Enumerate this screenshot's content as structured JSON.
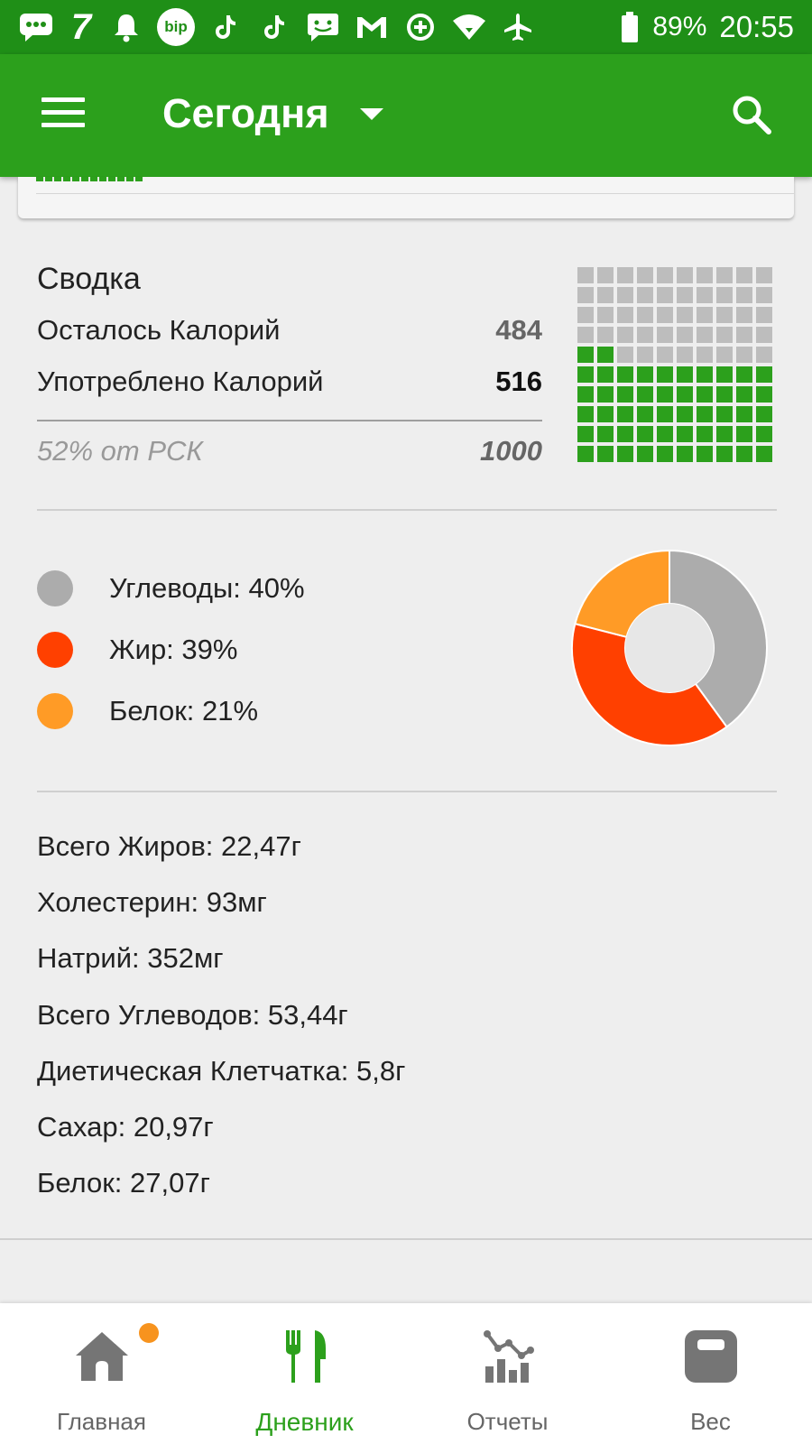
{
  "status_bar": {
    "time": "20:55",
    "battery": "89%",
    "icons": [
      "message-icon",
      "seven-icon",
      "bell-icon",
      "bip-icon",
      "tiktok-icon",
      "tiktok-icon",
      "chat-icon",
      "gmail-icon",
      "data-saver-icon",
      "wifi-icon",
      "airplane-icon",
      "battery-icon"
    ],
    "bip_label": "bip",
    "seven_label": "7"
  },
  "app_bar": {
    "title": "Сегодня",
    "menu_icon": "menu-icon",
    "dropdown_icon": "dropdown-caret-icon",
    "search_icon": "search-icon",
    "color": "#2ca01c"
  },
  "summary": {
    "title": "Сводка",
    "remaining_label": "Осталось Калорий",
    "remaining_value": "484",
    "consumed_label": "Употреблено Калорий",
    "consumed_value": "516",
    "percent_label": "52% от РСК",
    "goal_value": "1000",
    "grid_filled_fraction": 0.52
  },
  "macros": {
    "items": [
      {
        "label": "Углеводы: 40%",
        "percent": 40,
        "color": "#acacac"
      },
      {
        "label": "Жир: 39%",
        "percent": 39,
        "color": "#ff4000"
      },
      {
        "label": "Белок: 21%",
        "percent": 21,
        "color": "#ff9b26"
      }
    ]
  },
  "nutrients": [
    "Всего Жиров: 22,47г",
    "Холестерин: 93мг",
    "Натрий: 352мг",
    "Всего Углеводов: 53,44г",
    "Диетическая Клетчатка: 5,8г",
    "Сахар: 20,97г",
    "Белок: 27,07г"
  ],
  "bottom_nav": {
    "items": [
      {
        "label": "Главная",
        "icon": "home-icon",
        "active": false,
        "badge": true
      },
      {
        "label": "Дневник",
        "icon": "fork-knife-icon",
        "active": true,
        "badge": false
      },
      {
        "label": "Отчеты",
        "icon": "reports-chart-icon",
        "active": false,
        "badge": false
      },
      {
        "label": "Вес",
        "icon": "scale-icon",
        "active": false,
        "badge": false
      }
    ]
  }
}
